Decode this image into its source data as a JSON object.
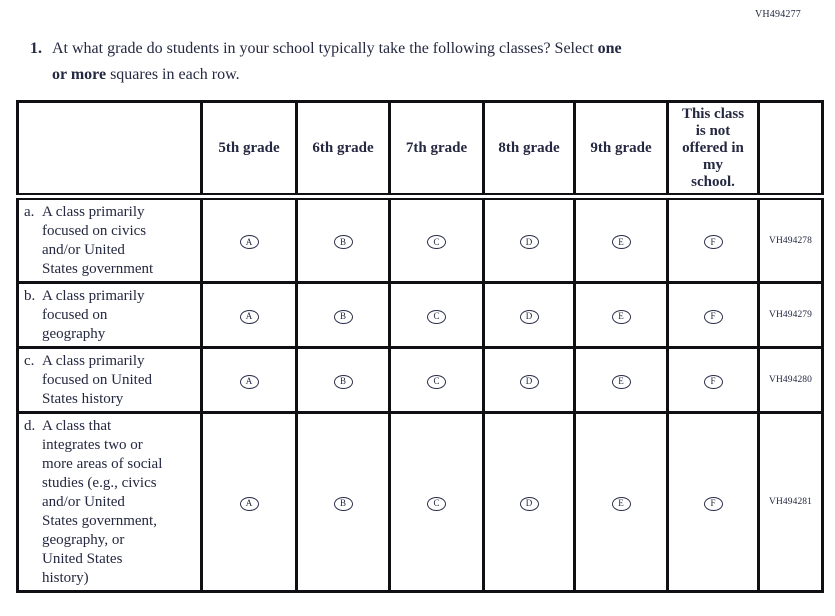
{
  "page_code": "VH494277",
  "question": {
    "number": "1.",
    "lines": [
      {
        "segments": [
          {
            "text": "At what grade do students in your school typically take the following classes? Select ",
            "bold": false
          },
          {
            "text": "one",
            "bold": true
          }
        ]
      },
      {
        "segments": [
          {
            "text": "or more",
            "bold": true
          },
          {
            "text": " squares in each row.",
            "bold": false
          }
        ]
      }
    ]
  },
  "table": {
    "grade_headers": [
      "5th grade",
      "6th grade",
      "7th grade",
      "8th grade",
      "9th grade"
    ],
    "not_offered_header_lines": [
      "This class",
      "is not",
      "offered in",
      "my",
      "school."
    ],
    "option_letters": [
      "A",
      "B",
      "C",
      "D",
      "E",
      "F"
    ],
    "rows": [
      {
        "letter": "a.",
        "label_lines": [
          "A class primarily",
          "focused on civics",
          "and/or United",
          "States government"
        ],
        "code": "VH494278"
      },
      {
        "letter": "b.",
        "label_lines": [
          "A class primarily",
          "focused on",
          "geography"
        ],
        "code": "VH494279"
      },
      {
        "letter": "c.",
        "label_lines": [
          "A class primarily",
          "focused on United",
          "States history"
        ],
        "code": "VH494280"
      },
      {
        "letter": "d.",
        "label_lines": [
          "A class that",
          "integrates two or",
          "more areas of social",
          "studies (e.g., civics",
          "and/or United",
          "States government,",
          "geography, or",
          "United States",
          "history)"
        ],
        "code": "VH494281"
      }
    ]
  },
  "colors": {
    "text": "#242840",
    "border": "#0f0f14"
  }
}
